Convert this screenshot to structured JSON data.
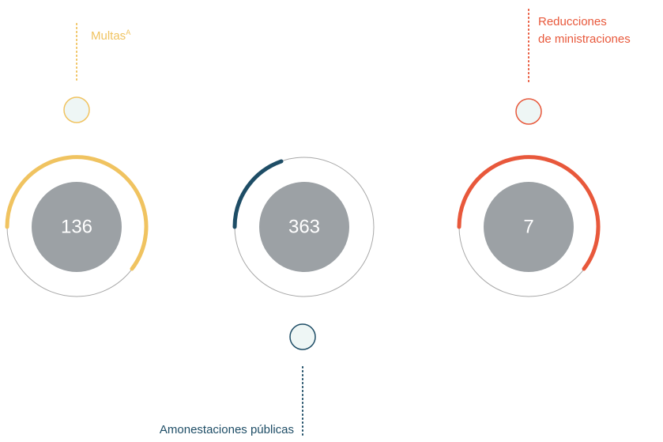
{
  "items": [
    {
      "label": [
        "Multas"
      ],
      "sup": "A",
      "value": "136"
    },
    {
      "label": [
        "Amonestaciones públicas"
      ],
      "value": "363"
    },
    {
      "label": [
        "Reducciones",
        "de ministraciones"
      ],
      "value": "7"
    }
  ]
}
